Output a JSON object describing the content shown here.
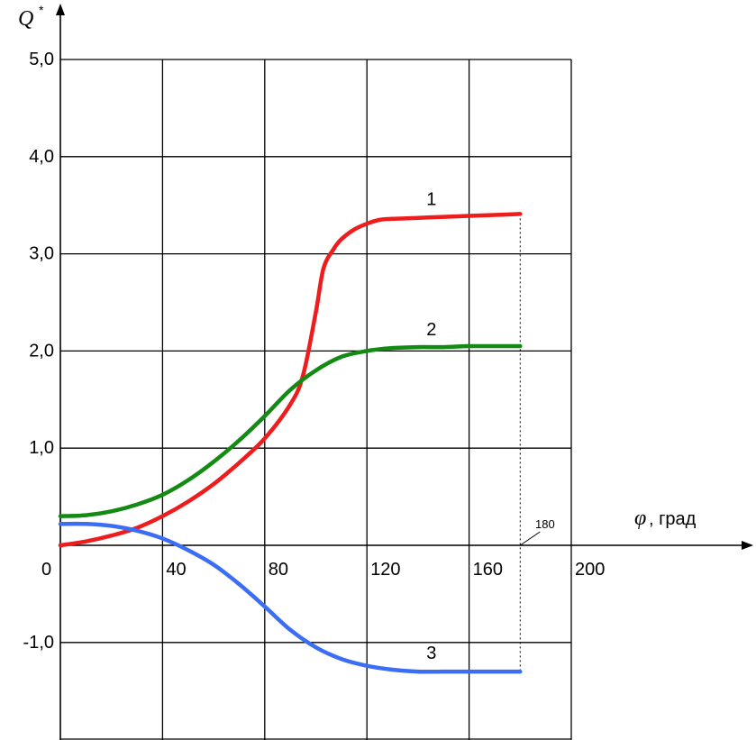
{
  "chart_data": {
    "type": "line",
    "ylabel": "Q",
    "ylabel_superscript": "*",
    "xlabel_symbol": "φ",
    "xlabel_unit": ", град",
    "xlim": [
      0,
      200
    ],
    "ylim": [
      -2.0,
      5.0
    ],
    "grid": true,
    "x_ticks": [
      {
        "value": 0,
        "label": "0"
      },
      {
        "value": 40,
        "label": "40"
      },
      {
        "value": 80,
        "label": "80"
      },
      {
        "value": 120,
        "label": "120"
      },
      {
        "value": 160,
        "label": "160"
      },
      {
        "value": 200,
        "label": "200"
      }
    ],
    "y_ticks": [
      {
        "value": 5.0,
        "label": "5,0"
      },
      {
        "value": 4.0,
        "label": "4,0"
      },
      {
        "value": 3.0,
        "label": "3,0"
      },
      {
        "value": 2.0,
        "label": "2,0"
      },
      {
        "value": 1.0,
        "label": "1,0"
      },
      {
        "value": -1.0,
        "label": "-1,0"
      }
    ],
    "annotation": {
      "label": "180",
      "x": 180
    },
    "series": [
      {
        "name": "1",
        "color": "#ee1c1c",
        "x": [
          0,
          10,
          20,
          30,
          40,
          50,
          60,
          70,
          80,
          90,
          95,
          100,
          103,
          107,
          110,
          115,
          120,
          125,
          130,
          140,
          150,
          160,
          170,
          180
        ],
        "y": [
          0.0,
          0.04,
          0.1,
          0.18,
          0.3,
          0.45,
          0.63,
          0.85,
          1.1,
          1.45,
          1.75,
          2.4,
          2.85,
          3.05,
          3.15,
          3.25,
          3.31,
          3.35,
          3.36,
          3.37,
          3.38,
          3.39,
          3.4,
          3.41
        ]
      },
      {
        "name": "2",
        "color": "#138a13",
        "x": [
          0,
          10,
          20,
          30,
          40,
          50,
          60,
          70,
          80,
          90,
          100,
          110,
          120,
          130,
          140,
          150,
          160,
          170,
          180
        ],
        "y": [
          0.3,
          0.31,
          0.35,
          0.42,
          0.52,
          0.67,
          0.86,
          1.08,
          1.33,
          1.6,
          1.8,
          1.94,
          2.0,
          2.03,
          2.04,
          2.04,
          2.05,
          2.05,
          2.05
        ]
      },
      {
        "name": "3",
        "color": "#3b6ef5",
        "x": [
          0,
          10,
          20,
          30,
          40,
          50,
          60,
          70,
          80,
          90,
          100,
          110,
          120,
          130,
          140,
          150,
          160,
          170,
          180
        ],
        "y": [
          0.22,
          0.22,
          0.2,
          0.15,
          0.07,
          -0.05,
          -0.2,
          -0.4,
          -0.63,
          -0.87,
          -1.05,
          -1.17,
          -1.24,
          -1.28,
          -1.3,
          -1.3,
          -1.3,
          -1.3,
          -1.3
        ]
      }
    ]
  }
}
